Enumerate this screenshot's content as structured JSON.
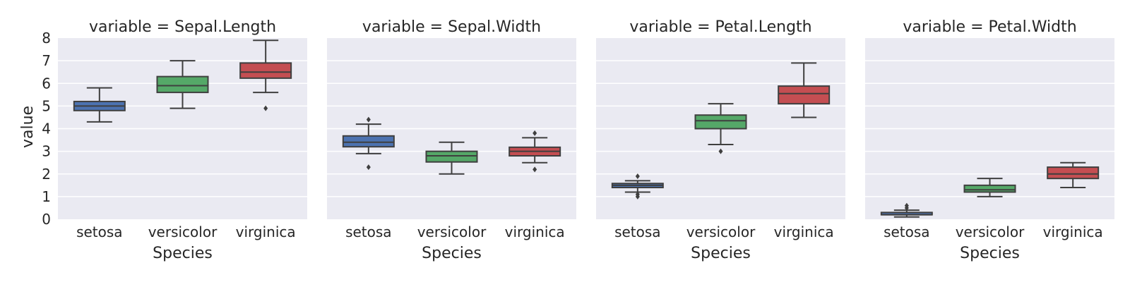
{
  "chart_data": {
    "type": "box",
    "ylabel": "value",
    "xlabel": "Species",
    "ylim": [
      0,
      8
    ],
    "yticks": [
      0,
      1,
      2,
      3,
      4,
      5,
      6,
      7,
      8
    ],
    "grid": true,
    "sharey": true,
    "categories": [
      "setosa",
      "versicolor",
      "virginica"
    ],
    "colors": {
      "setosa": "#4C72B0",
      "versicolor": "#55A868",
      "virginica": "#C44E52"
    },
    "panels": [
      {
        "title": "variable = Sepal.Length",
        "boxes": [
          {
            "category": "setosa",
            "whislo": 4.3,
            "q1": 4.8,
            "med": 5.0,
            "q3": 5.2,
            "whishi": 5.8,
            "fliers": []
          },
          {
            "category": "versicolor",
            "whislo": 4.9,
            "q1": 5.6,
            "med": 5.9,
            "q3": 6.3,
            "whishi": 7.0,
            "fliers": []
          },
          {
            "category": "virginica",
            "whislo": 5.6,
            "q1": 6.23,
            "med": 6.5,
            "q3": 6.9,
            "whishi": 7.9,
            "fliers": [
              4.9
            ]
          }
        ]
      },
      {
        "title": "variable = Sepal.Width",
        "boxes": [
          {
            "category": "setosa",
            "whislo": 2.9,
            "q1": 3.2,
            "med": 3.4,
            "q3": 3.68,
            "whishi": 4.2,
            "fliers": [
              4.4,
              2.3
            ]
          },
          {
            "category": "versicolor",
            "whislo": 2.0,
            "q1": 2.53,
            "med": 2.8,
            "q3": 3.0,
            "whishi": 3.4,
            "fliers": []
          },
          {
            "category": "virginica",
            "whislo": 2.5,
            "q1": 2.8,
            "med": 3.0,
            "q3": 3.18,
            "whishi": 3.6,
            "fliers": [
              3.8,
              2.2
            ]
          }
        ]
      },
      {
        "title": "variable = Petal.Length",
        "boxes": [
          {
            "category": "setosa",
            "whislo": 1.2,
            "q1": 1.4,
            "med": 1.5,
            "q3": 1.58,
            "whishi": 1.7,
            "fliers": [
              1.9,
              1.1,
              1.0
            ]
          },
          {
            "category": "versicolor",
            "whislo": 3.3,
            "q1": 4.0,
            "med": 4.35,
            "q3": 4.6,
            "whishi": 5.1,
            "fliers": [
              3.0
            ]
          },
          {
            "category": "virginica",
            "whislo": 4.5,
            "q1": 5.1,
            "med": 5.55,
            "q3": 5.88,
            "whishi": 6.9,
            "fliers": []
          }
        ]
      },
      {
        "title": "variable = Petal.Width",
        "boxes": [
          {
            "category": "setosa",
            "whislo": 0.1,
            "q1": 0.2,
            "med": 0.2,
            "q3": 0.3,
            "whishi": 0.4,
            "fliers": [
              0.5,
              0.6
            ]
          },
          {
            "category": "versicolor",
            "whislo": 1.0,
            "q1": 1.2,
            "med": 1.3,
            "q3": 1.5,
            "whishi": 1.8,
            "fliers": []
          },
          {
            "category": "virginica",
            "whislo": 1.4,
            "q1": 1.8,
            "med": 2.0,
            "q3": 2.3,
            "whishi": 2.5,
            "fliers": []
          }
        ]
      }
    ]
  }
}
